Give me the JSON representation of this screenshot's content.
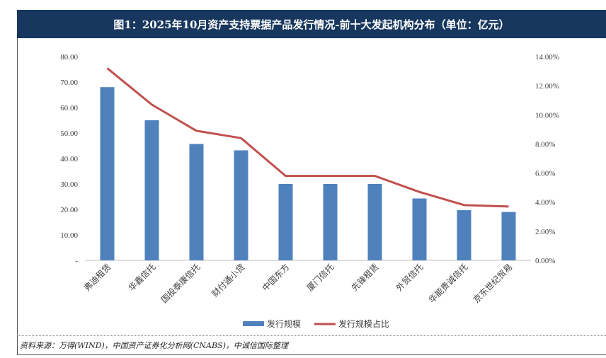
{
  "chart_data": {
    "type": "bar",
    "title": "图1：2025年10月资产支持票据产品发行情况-前十大发起机构分布（单位：亿元）",
    "categories": [
      "弗迪租赁",
      "华鑫信托",
      "国投泰康信托",
      "财付通小贷",
      "中国东方",
      "厦门信托",
      "先锋租赁",
      "外贸信托",
      "华能贵诚信托",
      "京东世纪贸易"
    ],
    "series": [
      {
        "name": "发行规模",
        "type": "bar",
        "axis": "left",
        "color": "#4f81bd",
        "values": [
          68.0,
          55.0,
          45.7,
          43.2,
          30.0,
          30.0,
          30.0,
          24.3,
          19.7,
          19.0
        ]
      },
      {
        "name": "发行规模占比",
        "type": "line",
        "axis": "right",
        "color": "#c0504d",
        "values": [
          13.2,
          10.7,
          8.9,
          8.4,
          5.8,
          5.8,
          5.8,
          4.7,
          3.8,
          3.7
        ]
      }
    ],
    "y_left": {
      "ticks": [
        "-",
        "10.00",
        "20.00",
        "30.00",
        "40.00",
        "50.00",
        "60.00",
        "70.00",
        "80.00"
      ],
      "min": 0,
      "max": 80
    },
    "y_right": {
      "ticks": [
        "0.00%",
        "2.00%",
        "4.00%",
        "6.00%",
        "8.00%",
        "10.00%",
        "12.00%",
        "14.00%"
      ],
      "min": 0,
      "max": 14
    },
    "legend_position": "bottom",
    "grid": false
  },
  "title": "图1：2025年10月资产支持票据产品发行情况-前十大发起机构分布（单位：亿元）",
  "source": "资料来源：万得(WIND)，中国资产证券化分析网(CNABS)，中诚信国际整理",
  "legend": {
    "bar": "发行规模",
    "line": "发行规模占比"
  }
}
